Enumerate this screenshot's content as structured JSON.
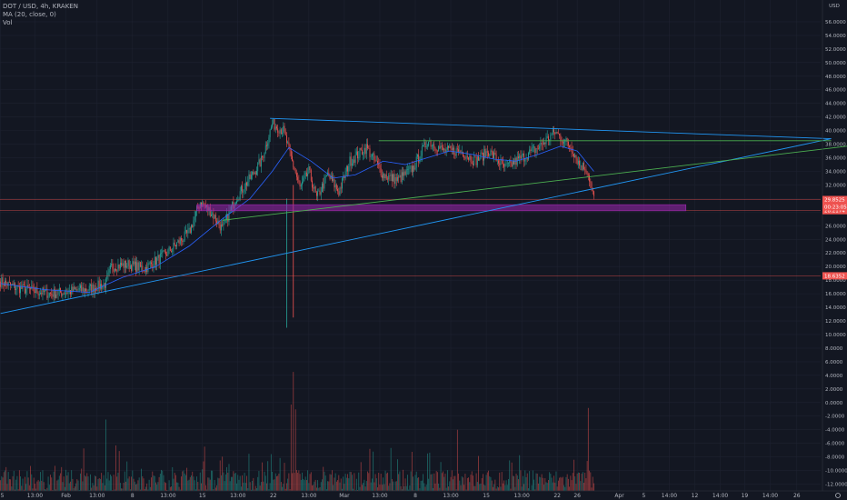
{
  "legend": {
    "symbol": "DOT / USD, 4h, KRAKEN",
    "ma": "MA (20, close, 0)",
    "vol": "Vol"
  },
  "currency": "USD",
  "colors": {
    "background": "#131722",
    "up": "#26a69a",
    "down": "#ef5350",
    "ma": "#2962ff",
    "trend_blue": "#2196f3",
    "trend_green": "#4caf50",
    "zone": "#9c27b0",
    "level_red": "#ef5350",
    "text": "#b2b5be"
  },
  "chart_data": {
    "type": "candlestick",
    "ylim": [
      -13,
      58
    ],
    "y_ticks": [
      "56.0000",
      "54.0000",
      "52.0000",
      "50.0000",
      "48.0000",
      "46.0000",
      "44.0000",
      "42.0000",
      "40.0000",
      "38.0000",
      "36.0000",
      "34.0000",
      "32.0000",
      "30.0000",
      "28.0000",
      "26.0000",
      "24.0000",
      "22.0000",
      "20.0000",
      "18.0000",
      "16.0000",
      "14.0000",
      "12.0000",
      "10.0000",
      "8.0000",
      "6.0000",
      "4.0000",
      "2.0000",
      "0.0000",
      "-2.0000",
      "-4.0000",
      "-6.0000",
      "-8.0000",
      "-10.0000",
      "-12.0000"
    ],
    "y_tick_values": [
      56,
      54,
      52,
      50,
      48,
      46,
      44,
      42,
      40,
      38,
      36,
      34,
      32,
      30,
      28,
      26,
      24,
      22,
      20,
      18,
      16,
      14,
      12,
      10,
      8,
      6,
      4,
      2,
      0,
      -2,
      -4,
      -6,
      -8,
      -10,
      -12
    ],
    "x_ticks": [
      "25",
      "13:00",
      "Feb",
      "13:00",
      "8",
      "13:00",
      "15",
      "13:00",
      "22",
      "13:00",
      "Mar",
      "13:00",
      "8",
      "13:00",
      "15",
      "13:00",
      "22",
      "26",
      "Apr",
      "5",
      "14:00",
      "12",
      "14:00",
      "19",
      "14:00",
      "26"
    ],
    "x_tick_bars": [
      0,
      31,
      59,
      87,
      119,
      151,
      182,
      214,
      246,
      278,
      310,
      342,
      374,
      406,
      438,
      470,
      502,
      520,
      558,
      580,
      603,
      626,
      649,
      671,
      694,
      718
    ],
    "price_labels": [
      {
        "text": "29.8525",
        "value": 29.8525
      },
      {
        "text": "28.2174",
        "value": 28.2174
      },
      {
        "text": "18.6352",
        "value": 18.6352
      }
    ],
    "price_label_extra": "00:23:05",
    "last_bar_index": 535,
    "total_bar_slots": 740,
    "anchors": [
      [
        0,
        17.8
      ],
      [
        14,
        16.9
      ],
      [
        28,
        16.5
      ],
      [
        45,
        16.0
      ],
      [
        60,
        16.3
      ],
      [
        80,
        16.7
      ],
      [
        95,
        17.5
      ],
      [
        100,
        20.0
      ],
      [
        115,
        20.3
      ],
      [
        130,
        19.7
      ],
      [
        150,
        22.0
      ],
      [
        170,
        25.0
      ],
      [
        180,
        29.5
      ],
      [
        190,
        28.0
      ],
      [
        200,
        25.5
      ],
      [
        212,
        30.0
      ],
      [
        225,
        33.0
      ],
      [
        235,
        35.5
      ],
      [
        245,
        41.0
      ],
      [
        255,
        40.0
      ],
      [
        262,
        36.0
      ],
      [
        270,
        31.5
      ],
      [
        278,
        34.0
      ],
      [
        285,
        30.0
      ],
      [
        295,
        33.5
      ],
      [
        305,
        31.0
      ],
      [
        315,
        35.5
      ],
      [
        330,
        37.5
      ],
      [
        345,
        33.5
      ],
      [
        358,
        32.7
      ],
      [
        372,
        34.5
      ],
      [
        385,
        38.5
      ],
      [
        400,
        37.0
      ],
      [
        415,
        37.0
      ],
      [
        428,
        35.5
      ],
      [
        440,
        37.0
      ],
      [
        455,
        34.5
      ],
      [
        470,
        36.0
      ],
      [
        485,
        37.5
      ],
      [
        500,
        39.8
      ],
      [
        515,
        37.5
      ],
      [
        522,
        35.0
      ],
      [
        528,
        34.5
      ],
      [
        531,
        33.0
      ],
      [
        535,
        29.9
      ]
    ],
    "ma_anchors": [
      [
        0,
        17.5
      ],
      [
        40,
        16.6
      ],
      [
        80,
        16.2
      ],
      [
        110,
        18.4
      ],
      [
        140,
        20.0
      ],
      [
        170,
        23.0
      ],
      [
        200,
        27.0
      ],
      [
        225,
        30.0
      ],
      [
        245,
        34.0
      ],
      [
        260,
        37.5
      ],
      [
        280,
        35.5
      ],
      [
        300,
        33.0
      ],
      [
        320,
        33.5
      ],
      [
        345,
        35.5
      ],
      [
        365,
        35.0
      ],
      [
        385,
        36.0
      ],
      [
        405,
        37.0
      ],
      [
        425,
        36.5
      ],
      [
        445,
        35.8
      ],
      [
        465,
        35.5
      ],
      [
        485,
        36.5
      ],
      [
        505,
        37.7
      ],
      [
        520,
        37.0
      ],
      [
        535,
        34.0
      ]
    ],
    "volume_spikes": [
      [
        95,
        -2.5
      ],
      [
        262,
        -0.3
      ],
      [
        264,
        4.5
      ],
      [
        266,
        -1.0
      ],
      [
        412,
        -4.0
      ],
      [
        530,
        -0.8
      ]
    ],
    "wick_spikes": [
      [
        258,
        30.0,
        11.0,
        "up"
      ],
      [
        264,
        32.0,
        12.5,
        "down"
      ]
    ],
    "trendlines": [
      {
        "color": "trend_blue",
        "points": [
          [
            243,
            41.8
          ],
          [
            749,
            38.8
          ]
        ]
      },
      {
        "color": "trend_blue",
        "points": [
          [
            0,
            13.1
          ],
          [
            749,
            38.8
          ]
        ]
      },
      {
        "color": "trend_green",
        "points": [
          [
            200,
            26.8
          ],
          [
            820,
            38.8
          ]
        ]
      },
      {
        "color": "trend_green",
        "points": [
          [
            341,
            38.5
          ],
          [
            749,
            38.5
          ]
        ]
      }
    ],
    "zone": {
      "x0": 177,
      "x1": 618,
      "y_top": 29.1,
      "y_bottom": 28.2
    },
    "hlines": [
      {
        "value": 29.8525,
        "color": "level_red"
      },
      {
        "value": 28.2174,
        "color": "level_red"
      },
      {
        "value": 18.6352,
        "color": "level_red"
      }
    ]
  }
}
